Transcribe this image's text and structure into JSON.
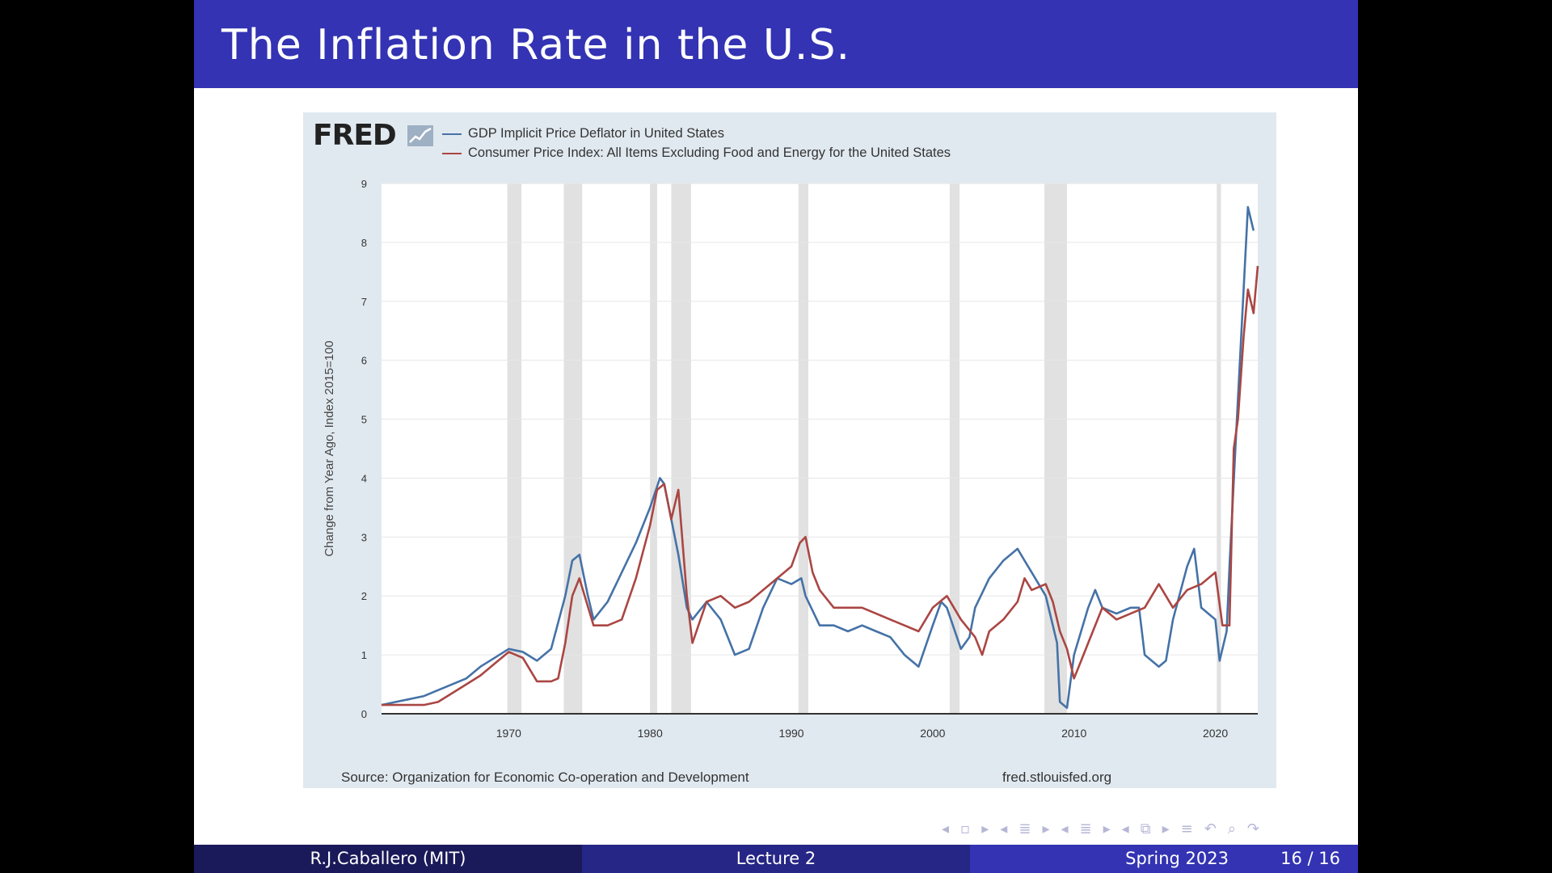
{
  "slide": {
    "title": "The Inflation Rate in the U.S.",
    "footer": {
      "author": "R.J.Caballero  (MIT)",
      "lecture": "Lecture 2",
      "date": "Spring 2023",
      "page": "16 / 16"
    },
    "nav_icons": [
      "nav-prev-icon",
      "frame-icon",
      "nav-next-icon",
      "nav-prev-icon",
      "subsection-icon",
      "nav-next-icon",
      "nav-prev-icon",
      "section-icon",
      "nav-next-icon",
      "nav-prev-icon",
      "presentation-icon",
      "nav-next-icon",
      "align-icon",
      "back-icon",
      "search-icon",
      "forward-icon"
    ]
  },
  "fred": {
    "logo": "FRED",
    "source": "Source: Organization for Economic Co-operation and Development",
    "url": "fred.stlouisfed.org"
  },
  "colors": {
    "title_bar": "#3333b3",
    "gdp_series": "#4572a7",
    "cpi_series": "#aa4643",
    "recession": "#e1e1e1",
    "panel_bg": "#e1e9f0"
  },
  "chart_data": {
    "type": "line",
    "ylabel": "Change from Year Ago, Index 2015=100",
    "xlabel": "",
    "ylim": [
      0,
      9
    ],
    "xlim": [
      1961,
      2023
    ],
    "yticks": [
      0,
      1,
      2,
      3,
      4,
      5,
      6,
      7,
      8,
      9
    ],
    "xticks": [
      1970,
      1980,
      1990,
      2000,
      2010,
      2020
    ],
    "grid": true,
    "legend_position": "top-left",
    "recessions": [
      [
        1969.9,
        1970.9
      ],
      [
        1973.9,
        1975.2
      ],
      [
        1980.0,
        1980.5
      ],
      [
        1981.5,
        1982.9
      ],
      [
        1990.5,
        1991.2
      ],
      [
        2001.2,
        2001.9
      ],
      [
        2007.9,
        2009.5
      ],
      [
        2020.1,
        2020.4
      ]
    ],
    "series": [
      {
        "name": "GDP Implicit Price Deflator in United States",
        "x": [
          1961,
          1962,
          1963,
          1964,
          1965,
          1966,
          1967,
          1968,
          1969,
          1970,
          1971,
          1972,
          1973,
          1974,
          1974.5,
          1975,
          1975.6,
          1976,
          1977,
          1978,
          1979,
          1980,
          1980.7,
          1981,
          1982,
          1982.6,
          1983,
          1984,
          1985,
          1986,
          1987,
          1988,
          1989,
          1990,
          1990.7,
          1991,
          1992,
          1993,
          1994,
          1995,
          1996,
          1997,
          1998,
          1999,
          2000,
          2000.6,
          2001,
          2002,
          2002.6,
          2003,
          2004,
          2005,
          2006,
          2006.5,
          2007,
          2008,
          2008.8,
          2009,
          2009.5,
          2010,
          2011,
          2011.5,
          2012,
          2013,
          2014,
          2014.6,
          2015,
          2016,
          2016.5,
          2017,
          2018,
          2018.5,
          2019,
          2020,
          2020.3,
          2020.8,
          2021,
          2021.5,
          2022,
          2022.3,
          2022.7
        ],
        "values": [
          0.15,
          0.2,
          0.25,
          0.3,
          0.4,
          0.5,
          0.6,
          0.8,
          0.95,
          1.1,
          1.05,
          0.9,
          1.1,
          2.0,
          2.6,
          2.7,
          2.0,
          1.6,
          1.9,
          2.4,
          2.9,
          3.5,
          4.0,
          3.9,
          2.7,
          1.8,
          1.6,
          1.9,
          1.6,
          1.0,
          1.1,
          1.8,
          2.3,
          2.2,
          2.3,
          2.0,
          1.5,
          1.5,
          1.4,
          1.5,
          1.4,
          1.3,
          1.0,
          0.8,
          1.5,
          1.9,
          1.8,
          1.1,
          1.3,
          1.8,
          2.3,
          2.6,
          2.8,
          2.6,
          2.4,
          2.0,
          1.2,
          0.2,
          0.1,
          1.0,
          1.8,
          2.1,
          1.8,
          1.7,
          1.8,
          1.8,
          1.0,
          0.8,
          0.9,
          1.6,
          2.5,
          2.8,
          1.8,
          1.6,
          0.9,
          1.4,
          2.5,
          4.9,
          7.2,
          8.6,
          8.2
        ]
      },
      {
        "name": "Consumer Price Index: All Items Excluding Food and Energy for the United States",
        "x": [
          1961,
          1962,
          1963,
          1964,
          1965,
          1966,
          1967,
          1968,
          1969,
          1970,
          1971,
          1972,
          1973,
          1973.5,
          1974,
          1974.5,
          1975,
          1975.5,
          1976,
          1977,
          1978,
          1979,
          1980,
          1980.5,
          1981,
          1981.5,
          1982,
          1982.6,
          1983,
          1984,
          1985,
          1986,
          1987,
          1988,
          1989,
          1990,
          1990.6,
          1991,
          1991.5,
          1992,
          1993,
          1994,
          1995,
          1996,
          1997,
          1998,
          1999,
          2000,
          2001,
          2002,
          2003,
          2003.5,
          2004,
          2005,
          2006,
          2006.5,
          2007,
          2008,
          2008.5,
          2009,
          2009.5,
          2010,
          2010.5,
          2011,
          2012,
          2013,
          2014,
          2015,
          2016,
          2017,
          2018,
          2019,
          2020,
          2020.5,
          2021,
          2021.3,
          2021.6,
          2022,
          2022.3,
          2022.7,
          2023
        ],
        "values": [
          0.15,
          0.15,
          0.15,
          0.15,
          0.2,
          0.35,
          0.5,
          0.65,
          0.85,
          1.05,
          0.95,
          0.55,
          0.55,
          0.6,
          1.2,
          2.0,
          2.3,
          1.9,
          1.5,
          1.5,
          1.6,
          2.3,
          3.2,
          3.8,
          3.9,
          3.3,
          3.8,
          2.0,
          1.2,
          1.9,
          2.0,
          1.8,
          1.9,
          2.1,
          2.3,
          2.5,
          2.9,
          3.0,
          2.4,
          2.1,
          1.8,
          1.8,
          1.8,
          1.7,
          1.6,
          1.5,
          1.4,
          1.8,
          2.0,
          1.6,
          1.3,
          1.0,
          1.4,
          1.6,
          1.9,
          2.3,
          2.1,
          2.2,
          1.9,
          1.4,
          1.1,
          0.6,
          0.9,
          1.2,
          1.8,
          1.6,
          1.7,
          1.8,
          2.2,
          1.8,
          2.1,
          2.2,
          2.4,
          1.5,
          1.5,
          4.5,
          5.0,
          6.4,
          7.2,
          6.8,
          7.6
        ]
      }
    ]
  }
}
